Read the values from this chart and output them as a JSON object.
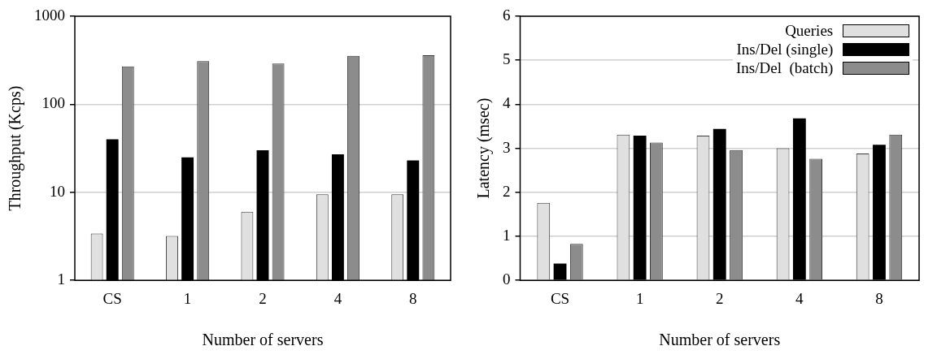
{
  "chart_data": [
    {
      "type": "bar",
      "xlabel": "Number of servers",
      "ylabel": "Throughput (Kcps)",
      "categories": [
        "CS",
        "1",
        "2",
        "4",
        "8"
      ],
      "log": "y",
      "ylim": [
        1,
        1000
      ],
      "yticks": [
        1,
        10,
        100,
        1000
      ],
      "grid": "y",
      "legend": false,
      "series": [
        {
          "color": "#e0e0e0",
          "values": [
            3.4,
            3.2,
            6,
            9.5,
            9.5
          ]
        },
        {
          "color": "#000000",
          "values": [
            40,
            25,
            30,
            27,
            23
          ]
        },
        {
          "color": "#8c8c8c",
          "values": [
            270,
            310,
            290,
            355,
            360
          ]
        }
      ]
    },
    {
      "type": "bar",
      "xlabel": "Number of servers",
      "ylabel": "Latency (msec)",
      "categories": [
        "CS",
        "1",
        "2",
        "4",
        "8"
      ],
      "ylim": [
        0,
        6
      ],
      "yticks": [
        0,
        1,
        2,
        3,
        4,
        5,
        6
      ],
      "grid": "y",
      "legend": "top right",
      "series": [
        {
          "name": "Queries",
          "color": "#e0e0e0",
          "values": [
            1.76,
            3.31,
            3.29,
            3.0,
            2.88
          ]
        },
        {
          "name": "Ins/Del (single)",
          "color": "#000000",
          "values": [
            0.38,
            3.29,
            3.44,
            3.68,
            3.08
          ]
        },
        {
          "name": "Ins/Del  (batch)",
          "color": "#8c8c8c",
          "values": [
            0.83,
            3.13,
            2.96,
            2.76,
            3.31
          ]
        }
      ]
    }
  ]
}
